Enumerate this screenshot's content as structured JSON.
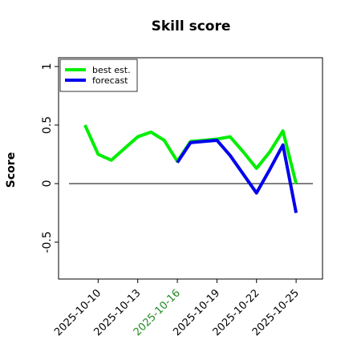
{
  "chart_data": {
    "type": "line",
    "title": "Skill score",
    "ylabel": "Score",
    "x": [
      "2025-10-09",
      "2025-10-10",
      "2025-10-11",
      "2025-10-12",
      "2025-10-13",
      "2025-10-14",
      "2025-10-15",
      "2025-10-16",
      "2025-10-17",
      "2025-10-18",
      "2025-10-19",
      "2025-10-20",
      "2025-10-21",
      "2025-10-22",
      "2025-10-23",
      "2025-10-24",
      "2025-10-25"
    ],
    "series": [
      {
        "name": "best est.",
        "color": "#00ee00",
        "values": [
          0.5,
          0.25,
          0.2,
          0.3,
          0.4,
          0.44,
          0.37,
          0.19,
          0.36,
          0.37,
          0.38,
          0.4,
          0.27,
          0.13,
          0.27,
          0.45,
          0.0
        ]
      },
      {
        "name": "forecast",
        "color": "#0000ee",
        "values": [
          null,
          null,
          null,
          null,
          null,
          null,
          null,
          0.18,
          0.35,
          0.36,
          0.37,
          0.24,
          0.08,
          -0.08,
          0.12,
          0.33,
          -0.25
        ]
      }
    ],
    "xlim": [
      "2025-10-07",
      "2025-10-27"
    ],
    "xticks": [
      "2025-10-10",
      "2025-10-13",
      "2025-10-16",
      "2025-10-19",
      "2025-10-22",
      "2025-10-25"
    ],
    "highlight_tick": "2025-10-16",
    "highlight_color": "#228b22",
    "ylim": [
      -0.815,
      1.075
    ],
    "yticks": [
      -0.5,
      0.0,
      0.5,
      1.0
    ],
    "hline": 0,
    "legend": "upper left"
  }
}
